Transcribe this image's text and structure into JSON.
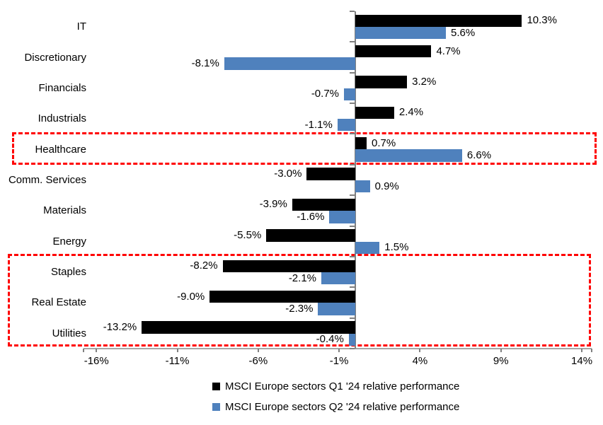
{
  "chart_data": {
    "type": "bar",
    "orientation": "horizontal",
    "title": "",
    "xlabel": "",
    "ylabel": "",
    "categories": [
      "IT",
      "Discretionary",
      "Financials",
      "Industrials",
      "Healthcare",
      "Comm. Services",
      "Materials",
      "Energy",
      "Staples",
      "Real Estate",
      "Utilities"
    ],
    "series": [
      {
        "name": "MSCI Europe sectors Q1 '24 relative performance",
        "color": "#000000",
        "values": [
          10.3,
          4.7,
          3.2,
          2.4,
          0.7,
          -3.0,
          -3.9,
          -5.5,
          -8.2,
          -9.0,
          -13.2
        ],
        "labels": [
          "10.3%",
          "4.7%",
          "3.2%",
          "2.4%",
          "0.7%",
          "-3.0%",
          "-3.9%",
          "-5.5%",
          "-8.2%",
          "-9.0%",
          "-13.2%"
        ]
      },
      {
        "name": "MSCI Europe sectors Q2 '24 relative performance",
        "color": "#4F81BD",
        "values": [
          5.6,
          -8.1,
          -0.7,
          -1.1,
          6.6,
          0.9,
          -1.6,
          1.5,
          -2.1,
          -2.3,
          -0.4
        ],
        "labels": [
          "5.6%",
          "-8.1%",
          "-0.7%",
          "-1.1%",
          "6.6%",
          "0.9%",
          "-1.6%",
          "1.5%",
          "-2.1%",
          "-2.3%",
          "-0.4%"
        ]
      }
    ],
    "x_ticks": [
      "-16%",
      "-11%",
      "-6%",
      "-1%",
      "4%",
      "9%",
      "14%"
    ],
    "x_tick_values": [
      -16,
      -11,
      -6,
      -1,
      4,
      9,
      14
    ],
    "xlim": [
      -16.8,
      14.6
    ],
    "grid": false,
    "legend_position": "bottom",
    "data_labels_shown": true,
    "highlights": [
      {
        "categories": [
          "Healthcare"
        ],
        "color": "#FF0000",
        "style": "dashed-box"
      },
      {
        "categories": [
          "Staples",
          "Real Estate",
          "Utilities"
        ],
        "color": "#FF0000",
        "style": "dashed-box"
      }
    ]
  }
}
